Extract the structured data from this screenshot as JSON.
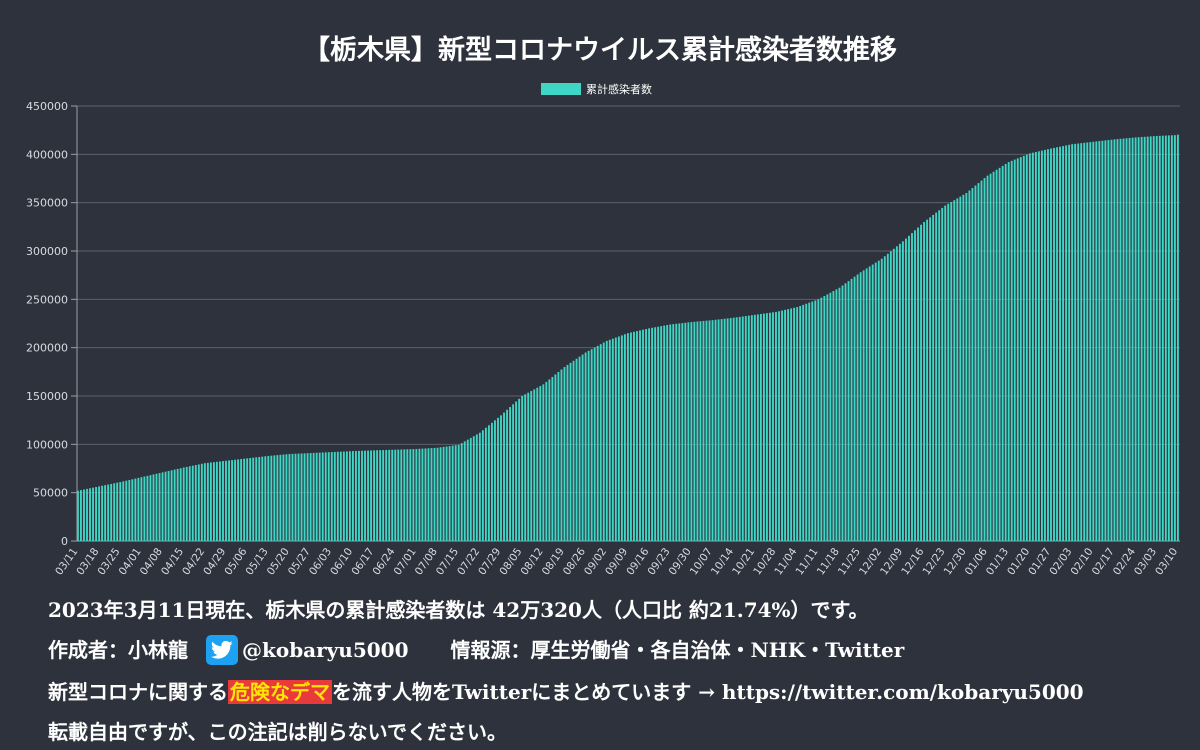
{
  "chart_data": {
    "type": "bar",
    "title": "【栃木県】新型コロナウイルス累計感染者数推移",
    "legend": "累計感染者数",
    "legend_position": "top-center",
    "bar_color": "#3fd6c6",
    "ylim": [
      0,
      450000
    ],
    "yticks": [
      "0",
      "50000",
      "100000",
      "150000",
      "200000",
      "250000",
      "300000",
      "350000",
      "400000",
      "450000"
    ],
    "grid": true,
    "x_tick_labels": [
      "03/11",
      "03/18",
      "03/25",
      "04/01",
      "04/08",
      "04/15",
      "04/22",
      "04/29",
      "05/06",
      "05/13",
      "05/20",
      "05/27",
      "06/03",
      "06/10",
      "06/17",
      "06/24",
      "07/01",
      "07/08",
      "07/15",
      "07/22",
      "07/29",
      "08/05",
      "08/12",
      "08/19",
      "08/26",
      "09/02",
      "09/09",
      "09/16",
      "09/23",
      "09/30",
      "10/07",
      "10/14",
      "10/21",
      "10/28",
      "11/04",
      "11/11",
      "11/18",
      "11/25",
      "12/02",
      "12/09",
      "12/16",
      "12/23",
      "12/30",
      "01/06",
      "01/13",
      "01/20",
      "01/27",
      "02/03",
      "02/10",
      "02/17",
      "02/24",
      "03/03",
      "03/10"
    ],
    "weekly_values": [
      52000,
      56500,
      61000,
      66000,
      71000,
      76000,
      80500,
      83000,
      85500,
      88000,
      90000,
      91000,
      92000,
      93000,
      93800,
      94500,
      95200,
      96500,
      99500,
      112000,
      130000,
      150000,
      162000,
      180000,
      195000,
      207000,
      215000,
      220000,
      224000,
      226500,
      228500,
      231000,
      234000,
      237000,
      242000,
      250000,
      262000,
      278000,
      292000,
      310000,
      330000,
      347000,
      360000,
      378000,
      392000,
      401000,
      406000,
      410500,
      413000,
      415500,
      417500,
      419000,
      420000
    ],
    "final_value": 420320
  },
  "footer": {
    "line1": "2023年3月11日現在、栃木県の累計感染者数は 42万320人（人口比 約21.74%）です。",
    "author": "作成者：小林龍",
    "twitter_icon": "twitter-bird-icon",
    "handle": "@kobaryu5000",
    "source": "情報源：厚生労働省・各自治体・NHK・Twitter",
    "line3_pre": "新型コロナに関する",
    "line3_warn": "危険なデマ",
    "line3_post": "を流す人物をTwitterにまとめています → https://twitter.com/kobaryu5000",
    "line4": "転載自由ですが、この注記は削らないでください。"
  }
}
